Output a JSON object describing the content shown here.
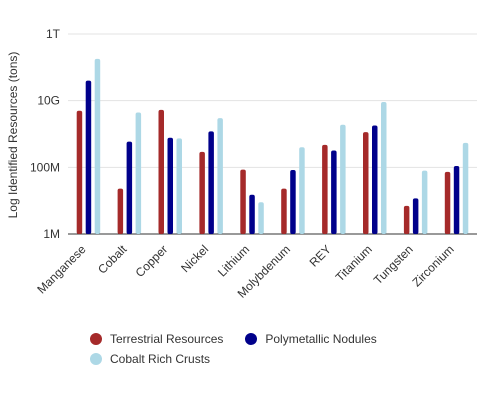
{
  "chart_data": {
    "type": "bar",
    "ylabel": "Log Identified Resources (tons)",
    "yscale": "log",
    "ylim": [
      1000000,
      1000000000000
    ],
    "yticks": [
      {
        "value": 1000000,
        "label": "1M"
      },
      {
        "value": 100000000,
        "label": "100M"
      },
      {
        "value": 10000000000,
        "label": "10G"
      },
      {
        "value": 1000000000000,
        "label": "1T"
      }
    ],
    "grid": true,
    "legend_position": "bottom-left",
    "categories": [
      "Manganese",
      "Cobalt",
      "Copper",
      "Nickel",
      "Lithium",
      "Molybdenum",
      "REY",
      "Titanium",
      "Tungsten",
      "Zirconium"
    ],
    "series": [
      {
        "name": "Terrestrial Resources",
        "color": "#a52a2a",
        "values": [
          5000000000,
          23000000,
          5300000000,
          290000000,
          85000000,
          23000000,
          470000000,
          1140000000,
          7000000,
          73000000
        ]
      },
      {
        "name": "Polymetallic Nodules",
        "color": "#00008b",
        "values": [
          40000000000,
          590000000,
          770000000,
          1200000000,
          15000000,
          83000000,
          320000000,
          1800000000,
          11700000,
          110000000
        ]
      },
      {
        "name": "Cobalt Rich Crusts",
        "color": "#add8e6",
        "values": [
          180000000000,
          4400000000,
          740000000,
          3000000000,
          9000000,
          400000000,
          1900000000,
          9100000000,
          80000000,
          540000000
        ]
      }
    ]
  }
}
